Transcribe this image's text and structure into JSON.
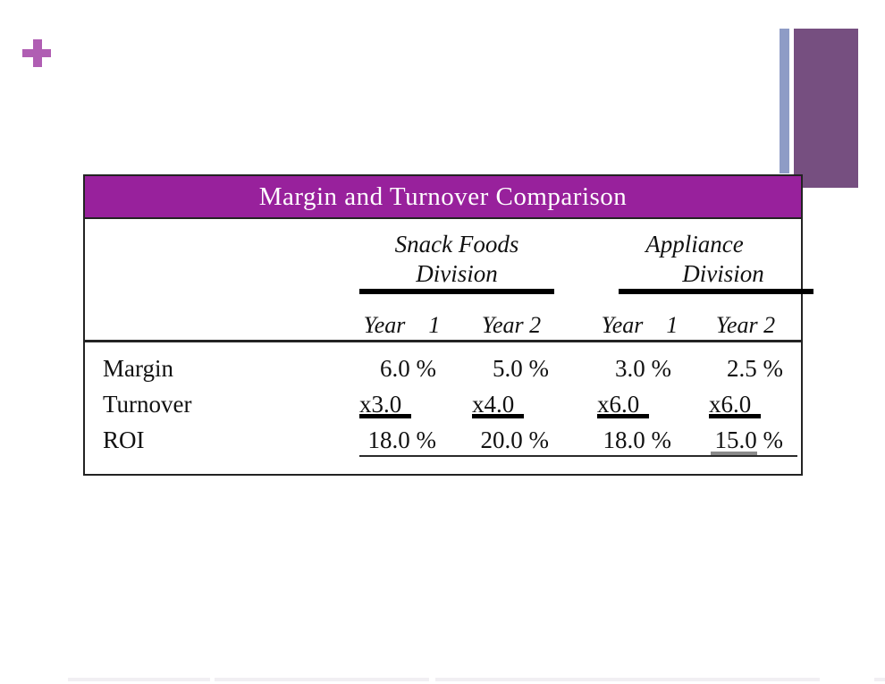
{
  "colors": {
    "plus": "#b05eb3",
    "accent_bar": "#8e9cc6",
    "accent_rect": "#764f80",
    "header_bg": "#98219c",
    "table_border": "#232323"
  },
  "table": {
    "title": "Margin and Turnover Comparison",
    "groups": [
      {
        "line1": "Snack Foods",
        "line2": "Division"
      },
      {
        "line1": "Appliance",
        "line2": "Division"
      }
    ],
    "year_headers": [
      "Year    1",
      "Year 2",
      "Year    1",
      "Year 2"
    ],
    "rows": [
      {
        "label": "Margin",
        "values": [
          "6.0 %",
          "5.0 %",
          "3.0 %",
          "2.5 %"
        ]
      },
      {
        "label": "Turnover",
        "values": [
          "x3.0",
          "x4.0",
          "x6.0",
          "x6.0"
        ]
      },
      {
        "label": "ROI",
        "values": [
          "18.0 %",
          "20.0 %",
          "18.0 %",
          "15.0 %"
        ]
      }
    ]
  },
  "chart_data": {
    "type": "table",
    "title": "Margin and Turnover Comparison",
    "column_groups": [
      "Snack Foods Division",
      "Appliance Division"
    ],
    "columns": [
      "Snack Foods Year 1",
      "Snack Foods Year 2",
      "Appliance Year 1",
      "Appliance Year 2"
    ],
    "rows": [
      {
        "label": "Margin",
        "values": [
          "6.0%",
          "5.0%",
          "3.0%",
          "2.5%"
        ]
      },
      {
        "label": "Turnover",
        "values": [
          "x3.0",
          "x4.0",
          "x6.0",
          "x6.0"
        ]
      },
      {
        "label": "ROI",
        "values": [
          "18.0%",
          "20.0%",
          "18.0%",
          "15.0%"
        ]
      }
    ]
  }
}
